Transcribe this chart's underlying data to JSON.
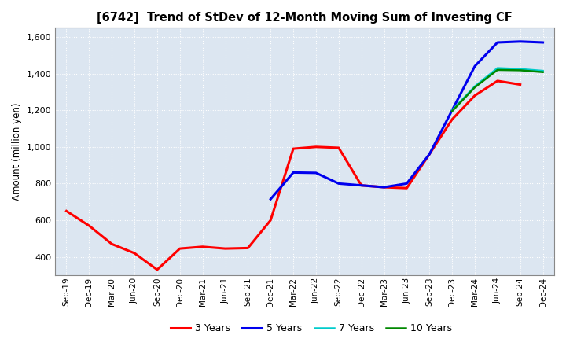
{
  "title": "[6742]  Trend of StDev of 12-Month Moving Sum of Investing CF",
  "ylabel": "Amount (million yen)",
  "background_color": "#ffffff",
  "plot_bg_color": "#dce6f1",
  "grid_color": "#ffffff",
  "x_labels": [
    "Sep-19",
    "Dec-19",
    "Mar-20",
    "Jun-20",
    "Sep-20",
    "Dec-20",
    "Mar-21",
    "Jun-21",
    "Sep-21",
    "Dec-21",
    "Mar-22",
    "Jun-22",
    "Sep-22",
    "Dec-22",
    "Mar-23",
    "Jun-23",
    "Sep-23",
    "Dec-23",
    "Mar-24",
    "Jun-24",
    "Sep-24",
    "Dec-24"
  ],
  "ylim": [
    300,
    1650
  ],
  "yticks": [
    400,
    600,
    800,
    1000,
    1200,
    1400,
    1600
  ],
  "series": {
    "3 Years": {
      "color": "#ff0000",
      "x_indices": [
        0,
        1,
        2,
        3,
        4,
        5,
        6,
        7,
        8,
        9,
        10,
        11,
        12,
        13,
        14,
        15,
        16,
        17,
        18,
        19,
        20
      ],
      "values": [
        650,
        570,
        470,
        420,
        330,
        445,
        455,
        445,
        448,
        600,
        990,
        1000,
        995,
        790,
        780,
        775,
        960,
        1150,
        1280,
        1360,
        1340
      ]
    },
    "5 Years": {
      "color": "#0000ee",
      "x_indices": [
        9,
        10,
        11,
        12,
        13,
        14,
        15,
        16,
        17,
        18,
        19,
        20,
        21
      ],
      "values": [
        715,
        860,
        858,
        800,
        790,
        780,
        800,
        960,
        1200,
        1440,
        1570,
        1575,
        1570
      ]
    },
    "7 Years": {
      "color": "#00cccc",
      "x_indices": [
        17,
        18,
        19,
        20,
        21
      ],
      "values": [
        1200,
        1330,
        1430,
        1425,
        1415
      ]
    },
    "10 Years": {
      "color": "#008800",
      "x_indices": [
        17,
        18,
        19,
        20,
        21
      ],
      "values": [
        1195,
        1325,
        1420,
        1418,
        1408
      ]
    }
  }
}
